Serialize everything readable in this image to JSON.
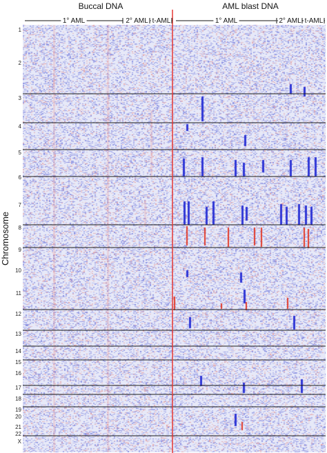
{
  "chart_data": {
    "type": "heatmap",
    "ylabel": "Chromosome",
    "column_groups": [
      {
        "title": "Buccal DNA",
        "subgroups": [
          "1° AML",
          "2° AML",
          "t-AML"
        ]
      },
      {
        "title": "AML blast DNA",
        "subgroups": [
          "1° AML",
          "2° AML",
          "t-AML"
        ]
      }
    ],
    "chromosomes": [
      "1",
      "2",
      "3",
      "4",
      "5",
      "6",
      "7",
      "8",
      "9",
      "10",
      "11",
      "12",
      "13",
      "14",
      "15",
      "16",
      "17",
      "18",
      "19",
      "20",
      "21",
      "22",
      "X"
    ],
    "colors": {
      "background": "#e7e9f8",
      "loss": "#2f36d6",
      "gain": "#e23a2a",
      "separator": "#e53935",
      "chromosome_line": "#1a1a1a"
    }
  }
}
